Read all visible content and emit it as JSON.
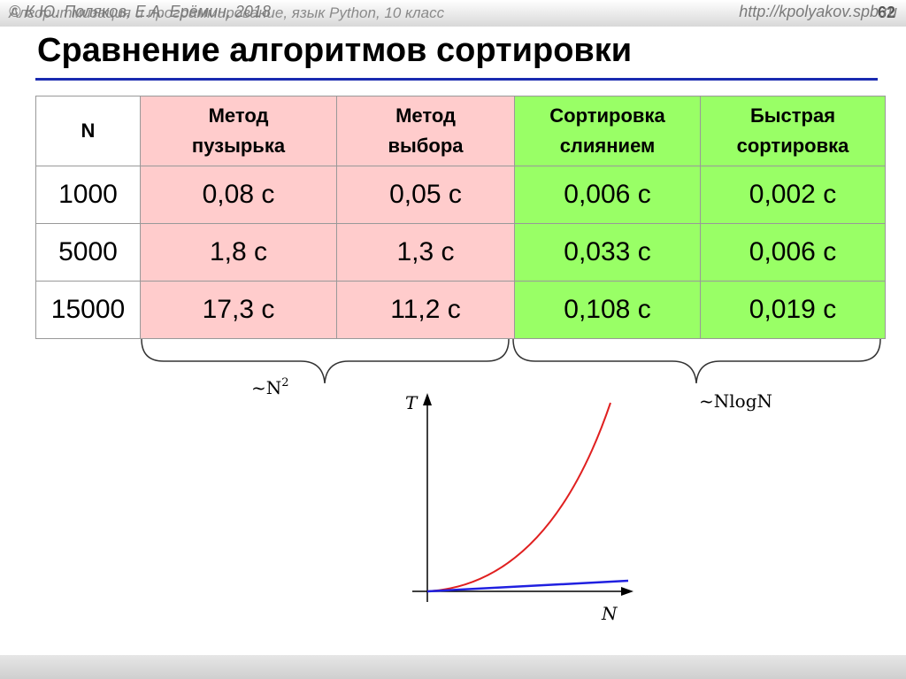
{
  "header": {
    "subtitle": "Алгоритмизация и программирование, язык Python, 10 класс",
    "page": "62"
  },
  "title": "Сравнение алгоритмов сортировки",
  "table": {
    "header": [
      "N",
      "Метод\nпузырька",
      "Метод\nвыбора",
      "Сортировка\nслиянием",
      "Быстрая\nсортировка"
    ],
    "rows": [
      [
        "1000",
        "0,08 с",
        "0,05 с",
        "0,006 с",
        "0,002 с"
      ],
      [
        "5000",
        "1,8 с",
        "1,3 с",
        "0,033 с",
        "0,006 с"
      ],
      [
        "15000",
        "17,3 с",
        "11,2 с",
        "0,108 с",
        "0,019 с"
      ]
    ]
  },
  "annotations": {
    "left": {
      "text": "~N",
      "sup": "2"
    },
    "right": "~NlogN"
  },
  "graph": {
    "y_label": "T",
    "x_label": "N"
  },
  "footer": {
    "left": "© К.Ю. Поляков, Е.А. Ерёмин, 2018",
    "right": "http://kpolyakov.spb.ru"
  }
}
